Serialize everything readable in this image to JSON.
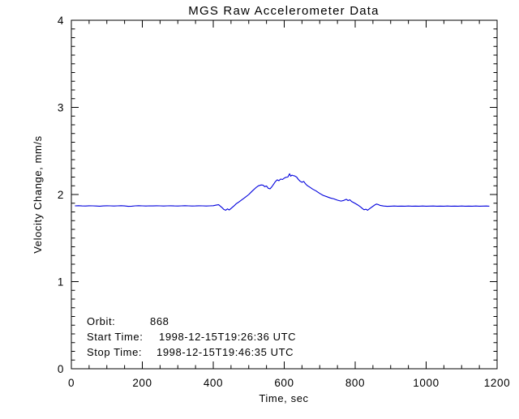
{
  "chart_data": {
    "type": "line",
    "title": "MGS Raw Accelerometer Data",
    "xlabel": "Time, sec",
    "ylabel": "Velocity Change, mm/s",
    "xlim": [
      0,
      1200
    ],
    "ylim": [
      0,
      4
    ],
    "xticks": [
      0,
      200,
      400,
      600,
      800,
      1000,
      1200
    ],
    "yticks": [
      0,
      1,
      2,
      3,
      4
    ],
    "x_minor_step": 50,
    "y_minor_step": 0.1,
    "grid": false,
    "legend": "none",
    "background": "#ffffff",
    "axis_color": "#000000",
    "line_color": "#0000dd",
    "series": [
      {
        "name": "velocity_change_mm_per_s",
        "x": [
          10,
          20,
          30,
          40,
          50,
          60,
          70,
          80,
          90,
          100,
          110,
          120,
          130,
          140,
          150,
          160,
          170,
          180,
          190,
          200,
          210,
          220,
          230,
          240,
          250,
          260,
          270,
          280,
          290,
          300,
          310,
          320,
          330,
          340,
          350,
          360,
          370,
          380,
          390,
          400,
          408,
          415,
          421,
          426,
          430,
          435,
          440,
          445,
          450,
          455,
          460,
          465,
          470,
          480,
          490,
          500,
          510,
          520,
          527,
          535,
          540,
          545,
          550,
          555,
          560,
          565,
          570,
          575,
          580,
          585,
          590,
          595,
          600,
          605,
          610,
          615,
          618,
          622,
          625,
          630,
          635,
          640,
          645,
          650,
          655,
          660,
          665,
          670,
          680,
          690,
          700,
          710,
          720,
          730,
          740,
          750,
          760,
          768,
          775,
          780,
          785,
          790,
          800,
          808,
          815,
          820,
          825,
          830,
          835,
          840,
          845,
          850,
          855,
          860,
          865,
          870,
          880,
          890,
          900,
          910,
          920,
          930,
          940,
          950,
          960,
          970,
          980,
          990,
          1000,
          1010,
          1020,
          1030,
          1040,
          1050,
          1060,
          1070,
          1080,
          1090,
          1100,
          1110,
          1120,
          1130,
          1140,
          1150,
          1160,
          1170,
          1178
        ],
        "y": [
          1.87,
          1.872,
          1.869,
          1.868,
          1.871,
          1.87,
          1.868,
          1.866,
          1.869,
          1.871,
          1.87,
          1.868,
          1.87,
          1.872,
          1.869,
          1.864,
          1.866,
          1.87,
          1.872,
          1.87,
          1.868,
          1.87,
          1.869,
          1.871,
          1.87,
          1.868,
          1.87,
          1.871,
          1.869,
          1.868,
          1.87,
          1.872,
          1.87,
          1.868,
          1.869,
          1.871,
          1.87,
          1.868,
          1.87,
          1.872,
          1.878,
          1.883,
          1.862,
          1.845,
          1.828,
          1.82,
          1.835,
          1.822,
          1.84,
          1.858,
          1.875,
          1.895,
          1.908,
          1.938,
          1.968,
          2.0,
          2.04,
          2.078,
          2.1,
          2.11,
          2.108,
          2.09,
          2.098,
          2.072,
          2.065,
          2.088,
          2.118,
          2.148,
          2.168,
          2.158,
          2.178,
          2.172,
          2.188,
          2.198,
          2.2,
          2.238,
          2.21,
          2.222,
          2.218,
          2.212,
          2.2,
          2.172,
          2.152,
          2.14,
          2.15,
          2.122,
          2.102,
          2.09,
          2.062,
          2.04,
          2.012,
          1.99,
          1.975,
          1.96,
          1.95,
          1.935,
          1.925,
          1.932,
          1.945,
          1.93,
          1.94,
          1.92,
          1.898,
          1.878,
          1.858,
          1.84,
          1.825,
          1.832,
          1.82,
          1.835,
          1.85,
          1.865,
          1.88,
          1.89,
          1.885,
          1.875,
          1.868,
          1.864,
          1.866,
          1.868,
          1.866,
          1.867,
          1.866,
          1.868,
          1.866,
          1.867,
          1.866,
          1.868,
          1.866,
          1.867,
          1.868,
          1.866,
          1.867,
          1.866,
          1.868,
          1.866,
          1.867,
          1.866,
          1.868,
          1.866,
          1.867,
          1.866,
          1.868,
          1.866,
          1.867,
          1.868,
          1.866
        ]
      }
    ]
  },
  "annotations": {
    "orbit": {
      "label": "Orbit:",
      "value": "868"
    },
    "start_time": {
      "label": "Start Time:",
      "value": "1998-12-15T19:26:36 UTC"
    },
    "stop_time": {
      "label": "Stop Time:",
      "value": "1998-12-15T19:46:35 UTC"
    }
  }
}
